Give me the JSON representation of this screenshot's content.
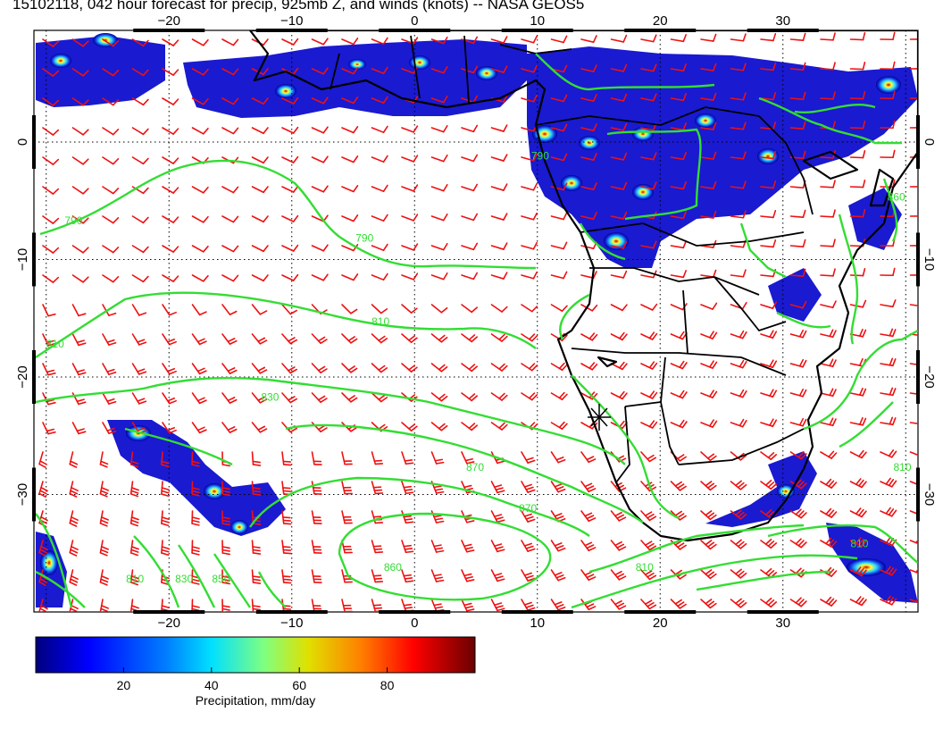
{
  "title": "15102118, 042 hour forecast for precip, 925mb Z, and winds (knots) -- NASA GEOS5",
  "map": {
    "lon_range": [
      -31,
      41
    ],
    "lat_range": [
      -40,
      9.5
    ],
    "x_ticks": [
      -20,
      -10,
      0,
      10,
      20,
      30
    ],
    "y_ticks": [
      0,
      -10,
      -20,
      -30
    ],
    "x_tick_labels": [
      "−20",
      "−10",
      "0",
      "10",
      "20",
      "30"
    ],
    "y_tick_labels": [
      "0",
      "−10",
      "−20",
      "−30"
    ],
    "grid": "dotted",
    "wind_barb_color": "#ee1111",
    "contour_color": "#33dd33",
    "coastline_color": "#000000",
    "marker_label": "star-marker"
  },
  "contours": [
    {
      "label": "790",
      "lon": -28.5,
      "lat": -7
    },
    {
      "label": "790",
      "lon": -4.8,
      "lat": -8.5
    },
    {
      "label": "810",
      "lon": -3.5,
      "lat": -15.6
    },
    {
      "label": "810",
      "lon": -30,
      "lat": -17.5
    },
    {
      "label": "830",
      "lon": -12.5,
      "lat": -22
    },
    {
      "label": "870",
      "lon": 4.2,
      "lat": -28
    },
    {
      "label": "870",
      "lon": 8.5,
      "lat": -31.5
    },
    {
      "label": "860",
      "lon": -2.5,
      "lat": -36.5
    },
    {
      "label": "810",
      "lon": 18,
      "lat": -36.5
    },
    {
      "label": "850",
      "lon": -16.5,
      "lat": -37.5
    },
    {
      "label": "830",
      "lon": -19.5,
      "lat": -37.5
    },
    {
      "label": "810",
      "lon": -23.5,
      "lat": -37.5
    },
    {
      "label": "810",
      "lon": 35.5,
      "lat": -34.5
    },
    {
      "label": "810",
      "lon": 39,
      "lat": -28
    },
    {
      "label": "860",
      "lon": 38.5,
      "lat": -5
    },
    {
      "label": "790",
      "lon": 9.5,
      "lat": -1.5
    }
  ],
  "colorbar": {
    "label": "Precipitation, mm/day",
    "ticks": [
      20,
      40,
      60,
      80
    ],
    "range": [
      0,
      100
    ],
    "colors": [
      "#00007f",
      "#0000ff",
      "#0080ff",
      "#00ffff",
      "#80ff80",
      "#ffff00",
      "#ff8000",
      "#ff0000",
      "#7f0000"
    ]
  }
}
